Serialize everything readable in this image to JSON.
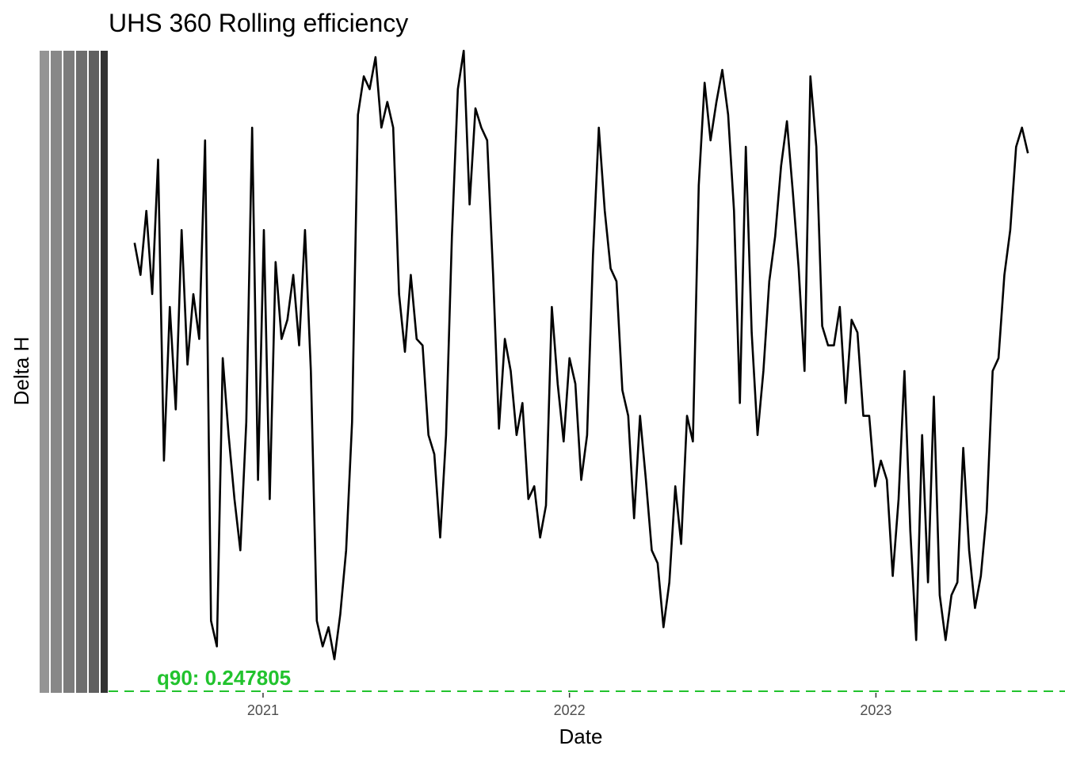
{
  "chart_data": {
    "type": "line",
    "title": "UHS 360 Rolling efficiency",
    "xlabel": "Date",
    "ylabel": "Delta H",
    "x_ticks": [
      "2021",
      "2022",
      "2023"
    ],
    "grid": false,
    "legend": "none",
    "colors": {
      "line": "#000000",
      "reference": "#22c32e",
      "q_red": "#e41a1c",
      "q_blue": "#1f3fe0"
    },
    "annotations": [
      {
        "label": "q90: 0.247805",
        "color": "#22c32e"
      }
    ],
    "reference_line": {
      "y": 0,
      "style": "dashed",
      "color": "#22c32e"
    },
    "ylim": [
      0,
      100
    ],
    "series": [
      {
        "x": [
          "2020-08-01",
          "2020-08-08",
          "2020-08-15",
          "2020-08-22",
          "2020-08-29",
          "2020-09-05",
          "2020-09-12",
          "2020-09-19",
          "2020-09-26",
          "2020-10-03",
          "2020-10-10",
          "2020-10-17",
          "2020-10-24",
          "2020-10-31",
          "2020-11-07",
          "2020-11-14",
          "2020-11-21",
          "2020-11-28",
          "2020-12-05",
          "2020-12-12",
          "2020-12-19",
          "2020-12-26",
          "2021-01-02",
          "2021-01-09",
          "2021-01-16",
          "2021-01-23",
          "2021-01-30",
          "2021-02-06",
          "2021-02-13",
          "2021-02-20",
          "2021-02-27",
          "2021-03-06",
          "2021-03-13",
          "2021-03-20",
          "2021-03-27",
          "2021-04-03",
          "2021-04-10",
          "2021-04-17",
          "2021-04-24",
          "2021-05-01",
          "2021-05-08",
          "2021-05-15",
          "2021-05-22",
          "2021-05-29",
          "2021-06-05",
          "2021-06-12",
          "2021-06-19",
          "2021-06-26",
          "2021-07-03",
          "2021-07-10",
          "2021-07-17",
          "2021-07-24",
          "2021-07-31",
          "2021-08-07",
          "2021-08-14",
          "2021-08-21",
          "2021-08-28",
          "2021-09-04",
          "2021-09-11",
          "2021-09-18",
          "2021-09-25",
          "2021-10-02",
          "2021-10-09",
          "2021-10-16",
          "2021-10-23",
          "2021-10-30",
          "2021-11-06",
          "2021-11-13",
          "2021-11-20",
          "2021-11-27",
          "2021-12-04",
          "2021-12-11",
          "2021-12-18",
          "2021-12-25",
          "2022-01-01",
          "2022-01-08",
          "2022-01-15",
          "2022-01-22",
          "2022-01-29",
          "2022-02-05",
          "2022-02-12",
          "2022-02-19",
          "2022-02-26",
          "2022-03-05",
          "2022-03-12",
          "2022-03-19",
          "2022-03-26",
          "2022-04-02",
          "2022-04-09",
          "2022-04-16",
          "2022-04-23",
          "2022-04-30",
          "2022-05-07",
          "2022-05-14",
          "2022-05-21",
          "2022-05-28",
          "2022-06-04",
          "2022-06-11",
          "2022-06-18",
          "2022-06-25",
          "2022-07-02",
          "2022-07-09",
          "2022-07-16",
          "2022-07-23",
          "2022-07-30",
          "2022-08-06",
          "2022-08-13",
          "2022-08-20",
          "2022-08-27",
          "2022-09-03",
          "2022-09-10",
          "2022-09-17",
          "2022-09-24",
          "2022-10-01",
          "2022-10-08",
          "2022-10-15",
          "2022-10-22",
          "2022-10-29",
          "2022-11-05",
          "2022-11-12",
          "2022-11-19",
          "2022-11-26",
          "2022-12-03",
          "2022-12-10",
          "2022-12-17",
          "2022-12-24",
          "2022-12-31",
          "2023-01-07",
          "2023-01-14",
          "2023-01-21",
          "2023-01-28",
          "2023-02-04",
          "2023-02-11",
          "2023-02-18",
          "2023-02-25",
          "2023-03-04",
          "2023-03-11",
          "2023-03-18",
          "2023-03-25",
          "2023-04-01",
          "2023-04-08",
          "2023-04-15",
          "2023-04-22",
          "2023-04-29",
          "2023-05-06",
          "2023-05-13",
          "2023-05-20",
          "2023-05-27",
          "2023-06-03",
          "2023-06-10",
          "2023-06-17",
          "2023-06-24",
          "2023-07-01"
        ],
        "y": [
          70,
          65,
          75,
          62,
          83,
          36,
          60,
          44,
          72,
          51,
          62,
          55,
          86,
          11,
          7,
          52,
          40,
          30,
          22,
          42,
          88,
          33,
          72,
          30,
          67,
          55,
          58,
          65,
          54,
          72,
          50,
          11,
          7,
          10,
          5,
          12,
          22,
          42,
          90,
          96,
          94,
          99,
          88,
          92,
          88,
          62,
          53,
          65,
          55,
          54,
          40,
          37,
          24,
          40,
          71,
          94,
          100,
          76,
          91,
          88,
          86,
          65,
          41,
          55,
          50,
          40,
          45,
          30,
          32,
          24,
          29,
          60,
          48,
          39,
          52,
          48,
          33,
          40,
          68,
          88,
          75,
          66,
          64,
          47,
          43,
          27,
          43,
          33,
          22,
          20,
          10,
          17,
          32,
          23,
          43,
          39,
          79,
          95,
          86,
          92,
          97,
          90,
          75,
          45,
          85,
          56,
          40,
          50,
          64,
          71,
          82,
          89,
          78,
          66,
          50,
          96,
          85,
          57,
          54,
          54,
          60,
          45,
          58,
          56,
          43,
          43,
          32,
          36,
          33,
          18,
          30,
          50,
          25,
          8,
          40,
          17,
          46,
          15,
          8,
          15,
          17,
          38,
          22,
          13,
          18,
          28,
          50,
          52,
          65,
          72,
          85,
          88,
          84
        ]
      }
    ]
  }
}
